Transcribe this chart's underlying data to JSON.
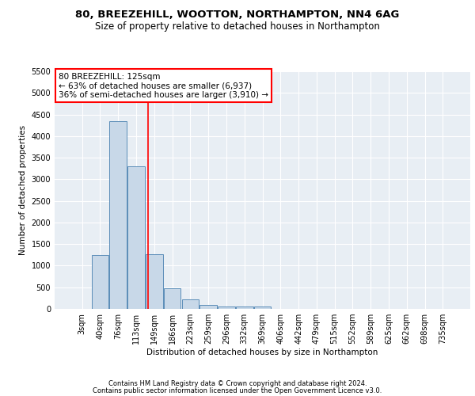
{
  "title1": "80, BREEZEHILL, WOOTTON, NORTHAMPTON, NN4 6AG",
  "title2": "Size of property relative to detached houses in Northampton",
  "xlabel": "Distribution of detached houses by size in Northampton",
  "ylabel": "Number of detached properties",
  "categories": [
    "3sqm",
    "40sqm",
    "76sqm",
    "113sqm",
    "149sqm",
    "186sqm",
    "223sqm",
    "259sqm",
    "296sqm",
    "332sqm",
    "369sqm",
    "406sqm",
    "442sqm",
    "479sqm",
    "515sqm",
    "552sqm",
    "589sqm",
    "625sqm",
    "662sqm",
    "698sqm",
    "735sqm"
  ],
  "values": [
    0,
    1255,
    4350,
    3300,
    1270,
    480,
    220,
    90,
    60,
    50,
    60,
    0,
    0,
    0,
    0,
    0,
    0,
    0,
    0,
    0,
    0
  ],
  "bar_color": "#c8d8e8",
  "bar_edge_color": "#5b8db8",
  "annotation_text": "80 BREEZEHILL: 125sqm\n← 63% of detached houses are smaller (6,937)\n36% of semi-detached houses are larger (3,910) →",
  "red_line_x": 3.65,
  "ylim": [
    0,
    5500
  ],
  "yticks": [
    0,
    500,
    1000,
    1500,
    2000,
    2500,
    3000,
    3500,
    4000,
    4500,
    5000,
    5500
  ],
  "bg_color": "#e8eef4",
  "footer1": "Contains HM Land Registry data © Crown copyright and database right 2024.",
  "footer2": "Contains public sector information licensed under the Open Government Licence v3.0.",
  "title_fontsize": 9.5,
  "subtitle_fontsize": 8.5,
  "axis_fontsize": 7.5,
  "tick_fontsize": 7,
  "annotation_fontsize": 7.5,
  "footer_fontsize": 6
}
